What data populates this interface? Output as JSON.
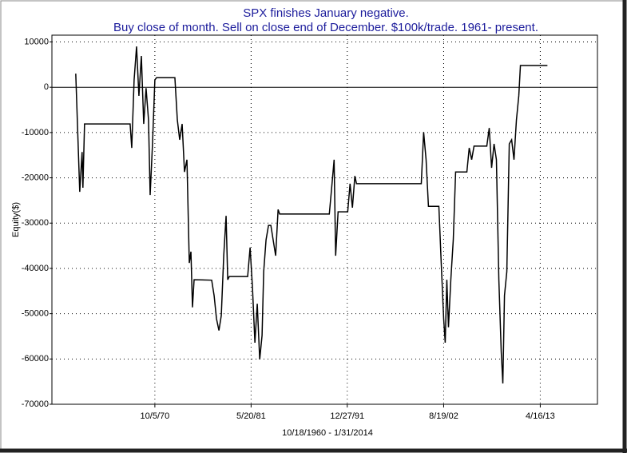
{
  "chart_data": {
    "type": "line",
    "title": "SPX finishes January negative.",
    "subtitle": "Buy close of month. Sell on close end of December. $100k/trade. 1961- present.",
    "y_label": "Equity($)",
    "x_label": "10/18/1960 - 1/31/2014",
    "xlim": [
      1959.4,
      2019.6
    ],
    "xticks": [
      {
        "value": 1970.76,
        "label": "10/5/70"
      },
      {
        "value": 1981.38,
        "label": "5/20/81"
      },
      {
        "value": 1991.99,
        "label": "12/27/91"
      },
      {
        "value": 2002.63,
        "label": "8/19/02"
      },
      {
        "value": 2013.29,
        "label": "4/16/13"
      }
    ],
    "ylim": [
      -70000,
      11500
    ],
    "yticks": [
      10000,
      0,
      -10000,
      -20000,
      -30000,
      -40000,
      -50000,
      -60000,
      -70000
    ],
    "grid": true,
    "series": [
      {
        "name": "Equity",
        "color": "#000000",
        "x": [
          1962.03,
          1962.47,
          1962.73,
          1962.82,
          1963.0,
          1968.03,
          1968.21,
          1968.47,
          1968.74,
          1969.0,
          1969.27,
          1969.53,
          1969.79,
          1970.06,
          1970.24,
          1970.5,
          1970.76,
          1970.94,
          1972.97,
          1973.24,
          1973.5,
          1973.77,
          1974.03,
          1974.3,
          1974.56,
          1974.74,
          1974.91,
          1975.09,
          1977.03,
          1977.3,
          1977.56,
          1977.83,
          1978.09,
          1978.36,
          1978.62,
          1978.8,
          1978.97,
          1981.0,
          1981.27,
          1981.53,
          1981.8,
          1982.06,
          1982.33,
          1982.59,
          1982.77,
          1983.03,
          1983.3,
          1983.56,
          1984.09,
          1984.36,
          1984.53,
          1984.8,
          1990.01,
          1990.27,
          1990.54,
          1990.71,
          1990.98,
          1992.04,
          1992.3,
          1992.56,
          1992.83,
          1993.01,
          2000.16,
          2000.42,
          2000.69,
          2000.95,
          2002.1,
          2002.36,
          2002.63,
          2002.8,
          2002.98,
          2003.16,
          2003.42,
          2003.69,
          2003.95,
          2005.19,
          2005.45,
          2005.72,
          2005.98,
          2007.39,
          2007.66,
          2007.92,
          2008.19,
          2008.45,
          2008.72,
          2008.98,
          2009.16,
          2009.34,
          2009.6,
          2009.87,
          2010.13,
          2010.39,
          2010.66,
          2010.92,
          2011.1,
          2014.08
        ],
        "values": [
          3000,
          -23100,
          -14300,
          -22200,
          -8100,
          -8100,
          -13400,
          1600,
          9000,
          -1900,
          6900,
          -8100,
          -200,
          -7200,
          -23800,
          -12500,
          1600,
          2100,
          2100,
          -7200,
          -11600,
          -8100,
          -18700,
          -16000,
          -38800,
          -36300,
          -48600,
          -42500,
          -42600,
          -46000,
          -51100,
          -53700,
          -50400,
          -37200,
          -28400,
          -42500,
          -41800,
          -41800,
          -35400,
          -44200,
          -56400,
          -47800,
          -60100,
          -54800,
          -40700,
          -33700,
          -30500,
          -30500,
          -37200,
          -27000,
          -28000,
          -28000,
          -28000,
          -22200,
          -16000,
          -37200,
          -27500,
          -27500,
          -21300,
          -26600,
          -19600,
          -21300,
          -21300,
          -9900,
          -16000,
          -26300,
          -26300,
          -38800,
          -51100,
          -56400,
          -42500,
          -53000,
          -42500,
          -33700,
          -18700,
          -18700,
          -13400,
          -16000,
          -13000,
          -13000,
          -9000,
          -17800,
          -12500,
          -16000,
          -42500,
          -58300,
          -65400,
          -46000,
          -40700,
          -12500,
          -11600,
          -16000,
          -7200,
          -1900,
          4800,
          4800
        ]
      }
    ]
  }
}
